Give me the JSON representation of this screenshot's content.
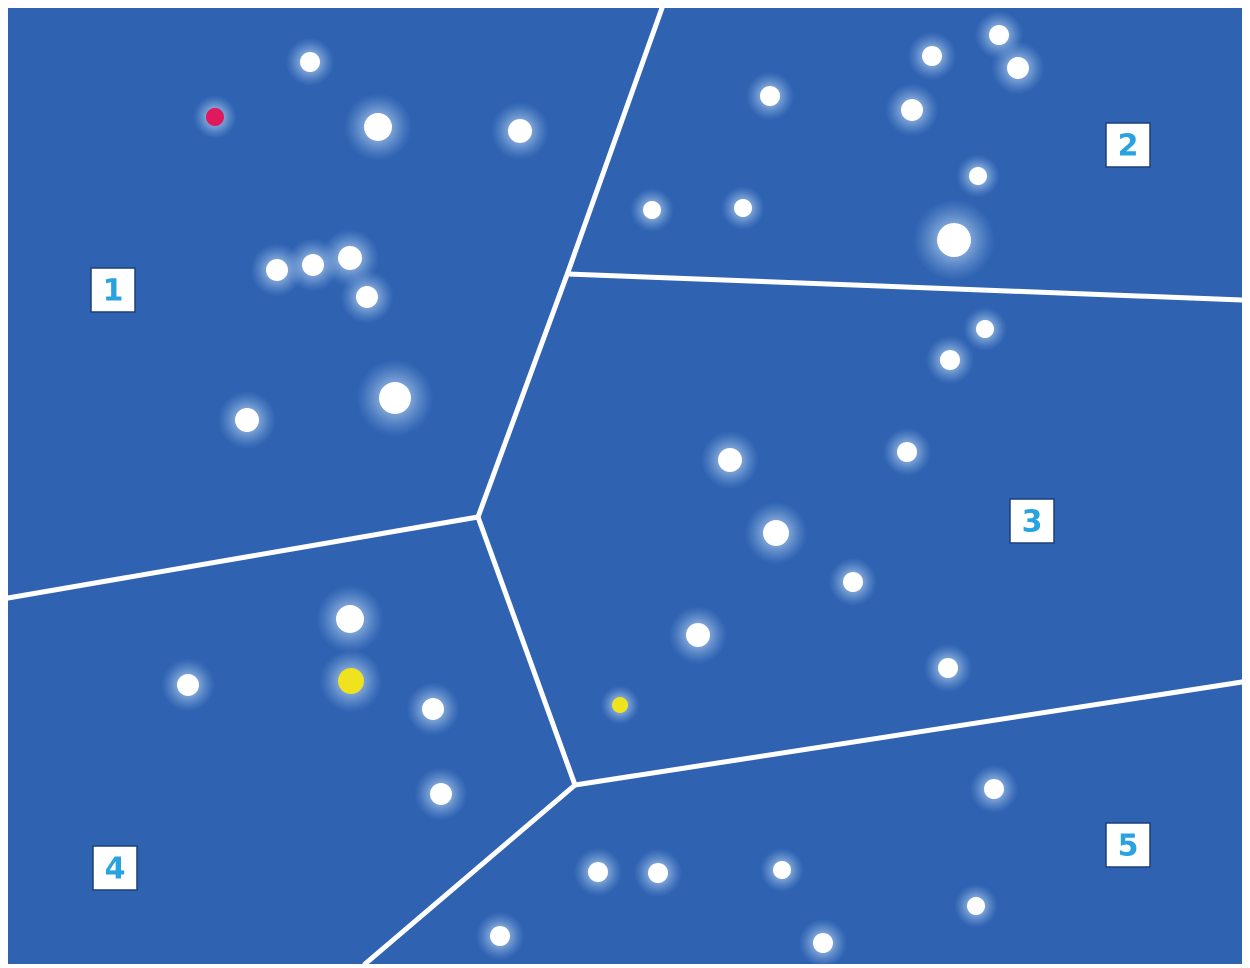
{
  "regions": [
    {
      "label": "1"
    },
    {
      "label": "2"
    },
    {
      "label": "3"
    },
    {
      "label": "4"
    },
    {
      "label": "5"
    }
  ]
}
